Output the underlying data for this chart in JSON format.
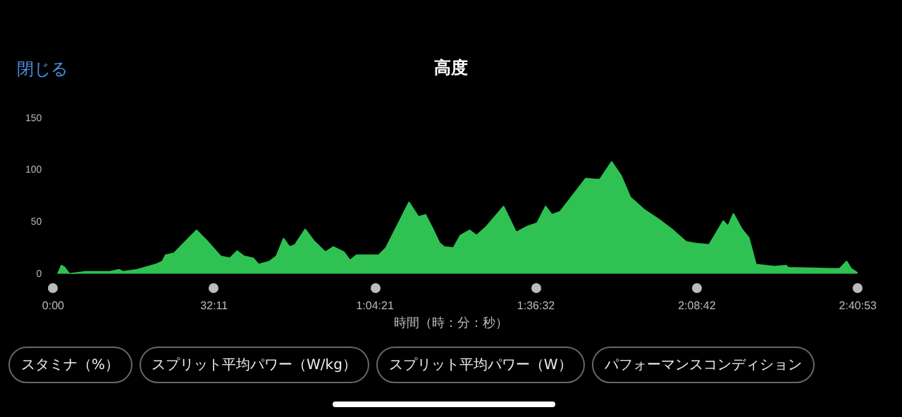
{
  "chart_data": {
    "type": "area",
    "title": "高度",
    "xlabel": "時間（時：分：秒）",
    "x": [
      0.93,
      1.68,
      2.34,
      3.24,
      6.54,
      11.16,
      13.2,
      13.98,
      16.74,
      20.46,
      21.84,
      22.5,
      24.18,
      28.68,
      30.72,
      33.48,
      35.34,
      36.78,
      38.16,
      40.02,
      41.1,
      43.26,
      44.64,
      46.08,
      47.28,
      48.36,
      50.4,
      52.08,
      54.42,
      56.04,
      58.14,
      59.34,
      60.66,
      65.1,
      66.54,
      71.16,
      73.02,
      74.46,
      75.84,
      77.22,
      78.18,
      80.04,
      81.42,
      83.28,
      84.66,
      86.52,
      90.06,
      92.58,
      94.92,
      96.78,
      98.46,
      99.72,
      101.4,
      106.5,
      108.42,
      109.32,
      111.66,
      113.52,
      115.38,
      118.14,
      120.96,
      123.72,
      126.54,
      128.88,
      131.16,
      133.98,
      134.94,
      136.02,
      137.7,
      139.08,
      140.52,
      144.24,
      146.52,
      147.0,
      155.4,
      157.26,
      158.64,
      159.54,
      160.8
    ],
    "series": [
      {
        "color": "#2fc253",
        "values": [
          0,
          8,
          6,
          0,
          2,
          2,
          4,
          2,
          4,
          9,
          12,
          18,
          20,
          42,
          32,
          17,
          15,
          22,
          17,
          15,
          9,
          12,
          17,
          34,
          26,
          28,
          43,
          32,
          21,
          26,
          21,
          13,
          18,
          18,
          25,
          69,
          55,
          57,
          44,
          30,
          26,
          25,
          37,
          42,
          37,
          45,
          65,
          40,
          46,
          49,
          65,
          57,
          60,
          92,
          91,
          91,
          108,
          95,
          74,
          62,
          53,
          43,
          31,
          29,
          28,
          51,
          46,
          58,
          43,
          35,
          9,
          7,
          8,
          6,
          5,
          5,
          12,
          5,
          1
        ]
      }
    ],
    "xlim": [
      0,
      160.8833
    ],
    "xticks": [
      {
        "value": 0,
        "label": "0:00"
      },
      {
        "value": 32.1833,
        "label": "32:11"
      },
      {
        "value": 64.35,
        "label": "1:04:21"
      },
      {
        "value": 96.5333,
        "label": "1:36:32"
      },
      {
        "value": 128.7,
        "label": "2:08:42"
      },
      {
        "value": 160.8833,
        "label": "2:40:53"
      }
    ],
    "ylim": [
      0,
      150
    ],
    "yticks": [
      0,
      50,
      100,
      150
    ],
    "grid": false,
    "legend": false,
    "marker": "none",
    "annotations": [
      "閉じる",
      "スタミナ（%）",
      "スプリット平均パワー（W/kg）",
      "スプリット平均パワー（W）",
      "パフォーマンスコンディション"
    ]
  }
}
